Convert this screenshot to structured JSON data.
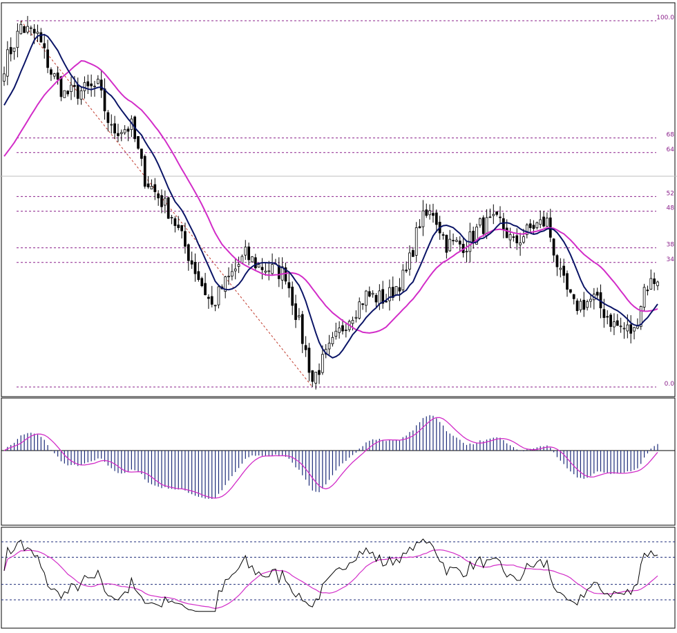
{
  "colors": {
    "background": "#ffffff",
    "frame": "#000000",
    "candle_up": "#ffffff",
    "candle_down": "#000000",
    "ma_fast": "#0a1466",
    "ma_slow": "#d22cc8",
    "fib_level": "#8a1f8a",
    "fib_diagonal": "#c0392b",
    "macd_hist": "#1b2a78",
    "macd_signal": "#d22cc8",
    "osc_main": "#000000",
    "osc_signal": "#d22cc8",
    "level_line": "#1b2a78",
    "separator": "#bdbdbd"
  },
  "fib_levels": [
    {
      "label": "100.0",
      "value": 100.0
    },
    {
      "label": "68",
      "value": 68
    },
    {
      "label": "64",
      "value": 64
    },
    {
      "label": "52",
      "value": 52
    },
    {
      "label": "48",
      "value": 48
    },
    {
      "label": "38",
      "value": 38
    },
    {
      "label": "34",
      "value": 34
    },
    {
      "label": "0.0",
      "value": 0.0
    }
  ],
  "chart_data": [
    {
      "type": "candlestick",
      "title": "",
      "y_scale": "fibonacci percent (0 = swing low, 100 = swing high)",
      "ylim": [
        -2,
        105
      ],
      "grid": false,
      "bar_count": 196,
      "waypoints": [
        {
          "bar": 0,
          "close": 88
        },
        {
          "bar": 5,
          "close": 98
        },
        {
          "bar": 10,
          "close": 96
        },
        {
          "bar": 14,
          "close": 86
        },
        {
          "bar": 18,
          "close": 80
        },
        {
          "bar": 24,
          "close": 81
        },
        {
          "bar": 28,
          "close": 82
        },
        {
          "bar": 32,
          "close": 70
        },
        {
          "bar": 38,
          "close": 71
        },
        {
          "bar": 42,
          "close": 57
        },
        {
          "bar": 50,
          "close": 47
        },
        {
          "bar": 56,
          "close": 34
        },
        {
          "bar": 62,
          "close": 22
        },
        {
          "bar": 65,
          "close": 27
        },
        {
          "bar": 72,
          "close": 36
        },
        {
          "bar": 76,
          "close": 33
        },
        {
          "bar": 84,
          "close": 31
        },
        {
          "bar": 88,
          "close": 17
        },
        {
          "bar": 92,
          "close": 2
        },
        {
          "bar": 97,
          "close": 10
        },
        {
          "bar": 102,
          "close": 18
        },
        {
          "bar": 108,
          "close": 25
        },
        {
          "bar": 114,
          "close": 24
        },
        {
          "bar": 120,
          "close": 31
        },
        {
          "bar": 124,
          "close": 45
        },
        {
          "bar": 128,
          "close": 48
        },
        {
          "bar": 132,
          "close": 39
        },
        {
          "bar": 138,
          "close": 39
        },
        {
          "bar": 142,
          "close": 44
        },
        {
          "bar": 148,
          "close": 45
        },
        {
          "bar": 152,
          "close": 39
        },
        {
          "bar": 158,
          "close": 44
        },
        {
          "bar": 162,
          "close": 45
        },
        {
          "bar": 166,
          "close": 30
        },
        {
          "bar": 170,
          "close": 22
        },
        {
          "bar": 176,
          "close": 24
        },
        {
          "bar": 182,
          "close": 17
        },
        {
          "bar": 188,
          "close": 15
        },
        {
          "bar": 191,
          "close": 27
        },
        {
          "bar": 195,
          "close": 30
        }
      ],
      "moving_averages": [
        {
          "period": 10,
          "color_key": "ma_fast"
        },
        {
          "period": 24,
          "color_key": "ma_slow"
        }
      ]
    },
    {
      "type": "bar",
      "title": "",
      "description": "MACD-style histogram with signal line",
      "zero_line": true,
      "series": [
        {
          "kind": "histogram",
          "color_key": "macd_hist"
        },
        {
          "kind": "line",
          "color_key": "macd_signal"
        }
      ]
    },
    {
      "type": "line",
      "title": "",
      "description": "Oscillator with signal line and level lines",
      "levels": [
        80,
        64,
        36,
        20
      ],
      "ylim": [
        0,
        100
      ],
      "series": [
        {
          "kind": "line",
          "color_key": "osc_main"
        },
        {
          "kind": "line",
          "color_key": "osc_signal"
        }
      ]
    }
  ]
}
